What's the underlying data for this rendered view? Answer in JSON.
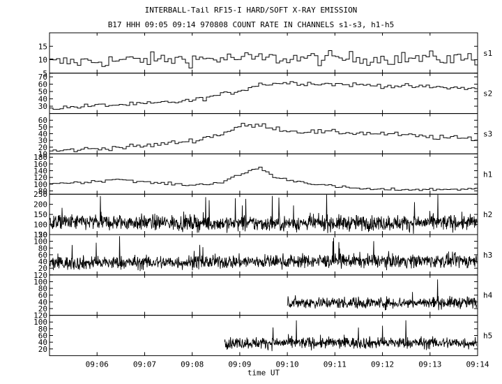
{
  "header": {
    "title": "INTERBALL-Tail RF15-I HARD/SOFT X-RAY EMISSION",
    "subtitle": "B17 HHH 09:05 09:14 970808  COUNT RATE IN CHANNELS s1-s3, h1-h5"
  },
  "chart_data": {
    "type": "line",
    "title": "INTERBALL-Tail RF15-I HARD/SOFT X-RAY EMISSION",
    "subtitle": "B17 HHH 09:05 09:14 970808  COUNT RATE IN CHANNELS s1-s3, h1-h5",
    "xlabel": "time UT",
    "x_range": [
      "09:05",
      "09:14"
    ],
    "x_ticks": [
      "09:06",
      "09:07",
      "09:08",
      "09:09",
      "09:10",
      "09:11",
      "09:12",
      "09:13",
      "09:14"
    ],
    "grid": false,
    "panels": [
      {
        "name": "s1",
        "ylim": [
          5,
          20
        ],
        "yticks": [
          5,
          10,
          15
        ],
        "style": "step",
        "profile": [
          [
            0,
            9
          ],
          [
            2,
            10
          ],
          [
            4,
            10.5
          ],
          [
            6,
            10.5
          ],
          [
            9,
            10.5
          ]
        ],
        "noise": 2.5
      },
      {
        "name": "s2",
        "ylim": [
          20,
          75
        ],
        "yticks": [
          30,
          40,
          50,
          60,
          70
        ],
        "style": "step",
        "profile": [
          [
            0,
            27
          ],
          [
            1,
            31
          ],
          [
            2,
            33
          ],
          [
            3,
            38
          ],
          [
            3.9,
            50
          ],
          [
            4.4,
            60
          ],
          [
            5,
            62
          ],
          [
            6,
            60
          ],
          [
            7,
            58
          ],
          [
            8,
            56
          ],
          [
            9,
            54
          ]
        ],
        "noise": 3
      },
      {
        "name": "s3",
        "ylim": [
          10,
          70
        ],
        "yticks": [
          10,
          20,
          30,
          40,
          50,
          60
        ],
        "style": "step",
        "profile": [
          [
            0,
            14
          ],
          [
            1,
            18
          ],
          [
            2,
            22
          ],
          [
            3,
            30
          ],
          [
            3.6,
            40
          ],
          [
            4,
            52
          ],
          [
            4.5,
            52
          ],
          [
            5,
            44
          ],
          [
            6,
            42
          ],
          [
            7,
            40
          ],
          [
            8,
            35
          ],
          [
            9,
            32
          ]
        ],
        "noise": 3.5
      },
      {
        "name": "h1",
        "ylim": [
          70,
          190
        ],
        "yticks": [
          80,
          100,
          120,
          140,
          160,
          180
        ],
        "style": "step",
        "profile": [
          [
            0,
            102
          ],
          [
            0.9,
            107
          ],
          [
            1.4,
            116
          ],
          [
            2,
            105
          ],
          [
            3,
            97
          ],
          [
            3.6,
            106
          ],
          [
            4.1,
            135
          ],
          [
            4.4,
            150
          ],
          [
            4.7,
            120
          ],
          [
            5.2,
            108
          ],
          [
            6,
            92
          ],
          [
            6.8,
            84
          ],
          [
            8,
            84
          ],
          [
            9,
            86
          ]
        ],
        "noise": 4
      },
      {
        "name": "h2",
        "ylim": [
          50,
          250
        ],
        "yticks": [
          50,
          100,
          150,
          200,
          250
        ],
        "style": "noise",
        "profile": [
          [
            0,
            112
          ],
          [
            2,
            110
          ],
          [
            4,
            105
          ],
          [
            6,
            107
          ],
          [
            9,
            110
          ]
        ],
        "noise": 38
      },
      {
        "name": "h3",
        "ylim": [
          0,
          120
        ],
        "yticks": [
          20,
          40,
          60,
          80,
          100,
          120
        ],
        "style": "noise",
        "profile": [
          [
            0,
            35
          ],
          [
            3,
            38
          ],
          [
            6,
            42
          ],
          [
            9,
            42
          ]
        ],
        "noise": 20
      },
      {
        "name": "h4",
        "ylim": [
          0,
          120
        ],
        "yticks": [
          20,
          40,
          60,
          80,
          100,
          120
        ],
        "style": "noise",
        "start": 5.0,
        "profile": [
          [
            5,
            38
          ],
          [
            7,
            37
          ],
          [
            9,
            38
          ]
        ],
        "noise": 17
      },
      {
        "name": "h5",
        "ylim": [
          0,
          120
        ],
        "yticks": [
          20,
          40,
          60,
          80,
          100,
          120
        ],
        "style": "noise",
        "start": 3.68,
        "profile": [
          [
            3.68,
            38
          ],
          [
            6,
            38
          ],
          [
            9,
            38
          ]
        ],
        "noise": 17
      }
    ]
  }
}
